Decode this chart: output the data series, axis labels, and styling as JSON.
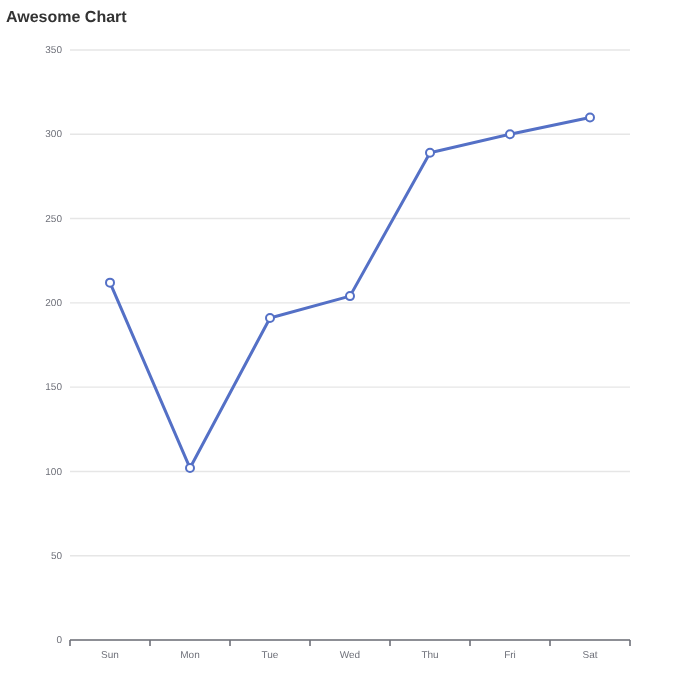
{
  "chart_data": {
    "type": "line",
    "title": "Awesome Chart",
    "categories": [
      "Sun",
      "Mon",
      "Tue",
      "Wed",
      "Thu",
      "Fri",
      "Sat"
    ],
    "series": [
      {
        "color": "#5470c6",
        "values": [
          212,
          102,
          191,
          204,
          289,
          300,
          310
        ]
      }
    ],
    "ylim": [
      0,
      350
    ],
    "yticks": [
      0,
      50,
      100,
      150,
      200,
      250,
      300,
      350
    ],
    "grid": "y",
    "marker": "circle",
    "line_style": "solid"
  }
}
